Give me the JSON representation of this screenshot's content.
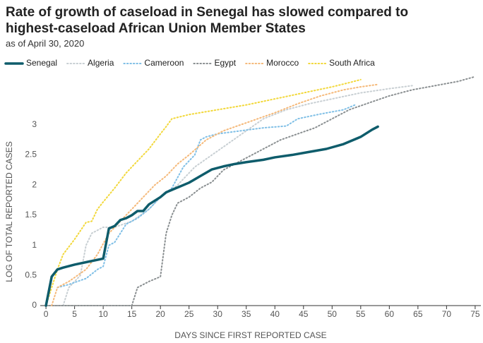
{
  "chart_data": {
    "type": "line",
    "title": "Rate of growth of caseload in Senegal has slowed compared to highest-caseload African Union Member States",
    "subtitle": "as of April 30, 2020",
    "x_label": "DAYS SINCE FIRST REPORTED CASE",
    "y_label": "LOG OF TOTAL REPORTED CASES",
    "xlim": [
      -1,
      76
    ],
    "ylim": [
      0,
      3.9
    ],
    "xticks": [
      0,
      5,
      10,
      15,
      20,
      25,
      30,
      35,
      40,
      45,
      50,
      55,
      60,
      65,
      70,
      75
    ],
    "yticks": [
      0,
      0.5,
      1,
      1.5,
      2,
      2.5,
      3
    ],
    "legend": "top",
    "series": [
      {
        "name": "Senegal",
        "color": "#0e5c6b",
        "style": "solid",
        "x": [
          0,
          1,
          2,
          3,
          5,
          7,
          10,
          11,
          12,
          13,
          14,
          15,
          16,
          17,
          18,
          20,
          21,
          23,
          25,
          27,
          29,
          31,
          33,
          35,
          38,
          40,
          43,
          46,
          49,
          52,
          55,
          57,
          58
        ],
        "values": [
          0,
          0.48,
          0.6,
          0.63,
          0.68,
          0.72,
          0.78,
          1.28,
          1.32,
          1.42,
          1.45,
          1.5,
          1.57,
          1.57,
          1.68,
          1.8,
          1.88,
          1.96,
          2.04,
          2.15,
          2.26,
          2.31,
          2.35,
          2.38,
          2.42,
          2.46,
          2.5,
          2.55,
          2.6,
          2.68,
          2.8,
          2.92,
          2.97
        ]
      },
      {
        "name": "Algeria",
        "color": "#c8cfd3",
        "style": "dotted",
        "x": [
          3,
          4,
          6,
          7,
          8,
          10,
          12,
          15,
          18,
          20,
          23,
          26,
          29,
          32,
          35,
          38,
          42,
          46,
          50,
          55,
          60,
          64
        ],
        "values": [
          0,
          0.3,
          0.5,
          1.0,
          1.2,
          1.3,
          1.3,
          1.4,
          1.6,
          1.8,
          2.0,
          2.3,
          2.5,
          2.7,
          2.9,
          3.1,
          3.25,
          3.35,
          3.43,
          3.53,
          3.6,
          3.65
        ]
      },
      {
        "name": "Cameroon",
        "color": "#7fbfe6",
        "style": "dotted",
        "x": [
          2,
          4,
          7,
          9,
          10,
          11,
          12,
          13,
          14,
          16,
          18,
          20,
          22,
          24,
          26,
          27,
          28,
          30,
          34,
          38,
          42,
          44,
          48,
          52,
          54
        ],
        "values": [
          0.3,
          0.35,
          0.45,
          0.6,
          0.65,
          1.0,
          1.05,
          1.2,
          1.35,
          1.45,
          1.6,
          1.8,
          1.95,
          2.3,
          2.5,
          2.75,
          2.8,
          2.85,
          2.9,
          2.95,
          2.98,
          3.1,
          3.18,
          3.25,
          3.33
        ]
      },
      {
        "name": "Egypt",
        "color": "#8a8f91",
        "style": "dotted",
        "x": [
          0,
          15,
          16,
          18,
          20,
          21,
          22,
          23,
          25,
          27,
          29,
          31,
          33,
          35,
          38,
          41,
          44,
          47,
          50,
          53,
          56,
          60,
          64,
          68,
          72,
          75
        ],
        "values": [
          0,
          0,
          0.3,
          0.4,
          0.48,
          1.2,
          1.5,
          1.7,
          1.8,
          1.95,
          2.05,
          2.25,
          2.35,
          2.45,
          2.6,
          2.75,
          2.85,
          2.95,
          3.1,
          3.25,
          3.35,
          3.48,
          3.58,
          3.65,
          3.72,
          3.8
        ]
      },
      {
        "name": "Morocco",
        "color": "#f5b97a",
        "style": "dotted",
        "x": [
          1,
          2,
          4,
          7,
          9,
          11,
          13,
          15,
          17,
          19,
          21,
          23,
          25,
          28,
          31,
          34,
          37,
          40,
          44,
          48,
          52,
          55,
          58
        ],
        "values": [
          0,
          0.3,
          0.4,
          0.6,
          0.85,
          1.2,
          1.4,
          1.6,
          1.8,
          2.0,
          2.15,
          2.35,
          2.5,
          2.75,
          2.9,
          3.0,
          3.1,
          3.2,
          3.35,
          3.48,
          3.58,
          3.63,
          3.67
        ]
      },
      {
        "name": "South Africa",
        "color": "#f2d83b",
        "style": "dotted",
        "x": [
          0,
          2,
          3,
          5,
          7,
          8,
          9,
          10,
          12,
          14,
          16,
          18,
          20,
          21,
          22,
          25,
          30,
          35,
          40,
          45,
          50,
          53,
          55
        ],
        "values": [
          0,
          0.6,
          0.85,
          1.1,
          1.38,
          1.4,
          1.6,
          1.72,
          1.95,
          2.2,
          2.4,
          2.6,
          2.85,
          2.97,
          3.1,
          3.17,
          3.25,
          3.33,
          3.43,
          3.53,
          3.63,
          3.7,
          3.75
        ]
      }
    ]
  }
}
